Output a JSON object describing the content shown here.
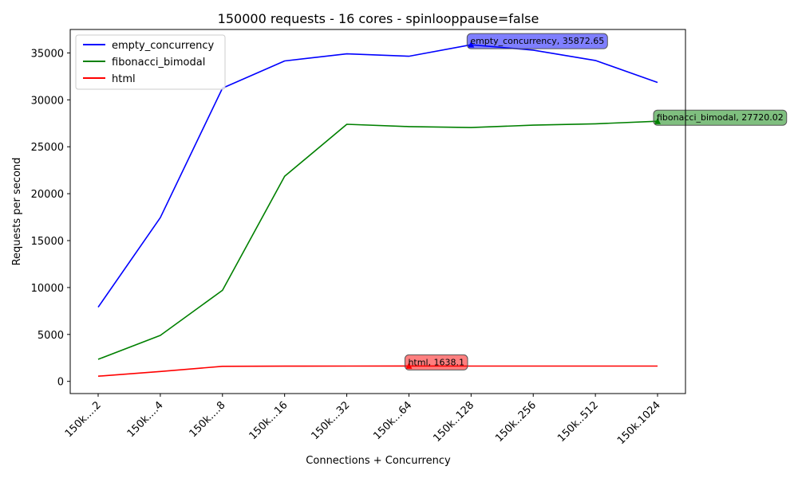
{
  "chart_data": {
    "type": "line",
    "title": "150000 requests - 16 cores - spinlooppause=false",
    "xlabel": "Connections + Concurrency",
    "ylabel": "Requests per second",
    "categories": [
      "150k....2",
      "150k....4",
      "150k....8",
      "150k...16",
      "150k...32",
      "150k...64",
      "150k..128",
      "150k..256",
      "150k..512",
      "150k.1024"
    ],
    "ylim": [
      -1300,
      37500
    ],
    "yticks": [
      0,
      5000,
      10000,
      15000,
      20000,
      25000,
      30000,
      35000
    ],
    "grid": false,
    "legend_position": "top-left",
    "series": [
      {
        "name": "empty_concurrency",
        "color": "#0000ff",
        "values": [
          7900,
          17450,
          31250,
          34150,
          34900,
          34650,
          35872.65,
          35300,
          34200,
          31850
        ]
      },
      {
        "name": "fibonacci_bimodal",
        "color": "#008000",
        "values": [
          2350,
          4900,
          9700,
          21850,
          27400,
          27150,
          27050,
          27300,
          27450,
          27720.02
        ]
      },
      {
        "name": "html",
        "color": "#ff0000",
        "values": [
          550,
          1050,
          1600,
          1620,
          1625,
          1638.1,
          1630,
          1630,
          1630,
          1630
        ]
      }
    ],
    "annotations": [
      {
        "series": 0,
        "index": 6,
        "text": "empty_concurrency, 35872.65",
        "color": "#0000ff"
      },
      {
        "series": 1,
        "index": 9,
        "text": "fibonacci_bimodal, 27720.02",
        "color": "#008000"
      },
      {
        "series": 2,
        "index": 5,
        "text": "html, 1638.1",
        "color": "#ff0000"
      }
    ]
  }
}
